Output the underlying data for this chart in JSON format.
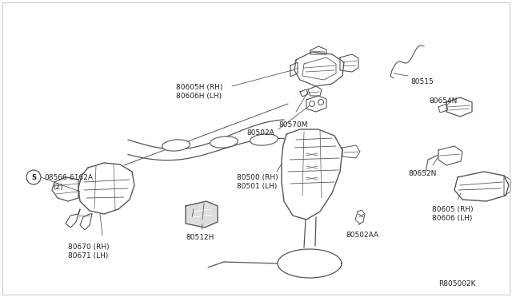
{
  "background_color": "#ffffff",
  "diagram_id": "R805002K",
  "line_color": "#555555",
  "text_color": "#222222",
  "font_size": 6.5,
  "labels": {
    "80605H_RH": "80605H (RH)",
    "80606H_LH": "80606H (LH)",
    "80570M": "80570M",
    "80502A": "80502A",
    "80515": "80515",
    "80654N": "80654N",
    "80652N": "80652N",
    "80605_RH": "80605 (RH)",
    "80606_LH": "80606 (LH)",
    "80500_RH": "80500 (RH)",
    "80501_LH": "80501 (LH)",
    "80512H": "80512H",
    "80502AA": "80502AA",
    "08566": "08566-6162A",
    "08566b": "(2)",
    "80670_RH": "80670 (RH)",
    "80671_LH": "80671 (LH)"
  }
}
